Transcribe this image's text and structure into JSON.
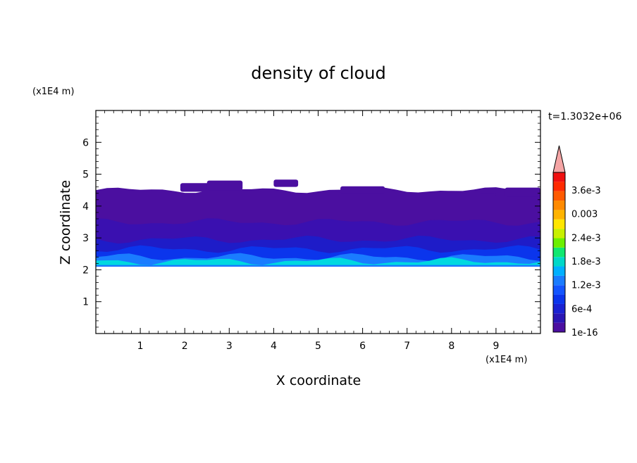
{
  "chart_data": {
    "type": "heatmap",
    "title": "density of cloud",
    "xlabel": "X coordinate",
    "ylabel": "Z coordinate",
    "x_unit": "(x1E4 m)",
    "y_unit": "(x1E4 m)",
    "time_label": "t=1.3032e+06",
    "xlim": [
      0,
      10
    ],
    "ylim": [
      0,
      7
    ],
    "x_ticks": [
      "1",
      "2",
      "3",
      "4",
      "5",
      "6",
      "7",
      "8",
      "9"
    ],
    "y_ticks": [
      "1",
      "2",
      "3",
      "4",
      "5",
      "6"
    ],
    "colorbar": {
      "labels": [
        "3.6e-3",
        "0.003",
        "2.4e-3",
        "1.8e-3",
        "1.2e-3",
        "6e-4",
        "1e-16"
      ],
      "colors": [
        "#4b0fa0",
        "#2a16b4",
        "#1a22d2",
        "#0b35ec",
        "#1355ff",
        "#1a7cff",
        "#00b0ff",
        "#00d8c8",
        "#10e870",
        "#6cf000",
        "#c8f000",
        "#ffe600",
        "#ffb400",
        "#ff8a00",
        "#ff5a00",
        "#ff2a00",
        "#f01010"
      ],
      "extend_color": "#f5a5a5"
    },
    "layers": [
      {
        "color": "#4b0fa0",
        "z_top": 4.5,
        "z_bottom": 2.1
      },
      {
        "color": "#3a10b0",
        "z_top": 3.5,
        "z_bottom": 2.1
      },
      {
        "color": "#1e1cc8",
        "z_top": 2.95,
        "z_bottom": 2.1
      },
      {
        "color": "#0b35ec",
        "z_top": 2.65,
        "z_bottom": 2.1
      },
      {
        "color": "#1a7cff",
        "z_top": 2.4,
        "z_bottom": 2.1
      },
      {
        "color": "#00d8e0",
        "z_top": 2.27,
        "z_bottom": 2.15
      }
    ],
    "cloud_patches": [
      {
        "x0": 1.9,
        "x1": 2.9,
        "z0": 4.45,
        "z1": 4.72
      },
      {
        "x0": 2.5,
        "x1": 3.3,
        "z0": 4.5,
        "z1": 4.8
      },
      {
        "x0": 4.0,
        "x1": 4.55,
        "z0": 4.6,
        "z1": 4.83
      },
      {
        "x0": 5.5,
        "x1": 6.5,
        "z0": 4.4,
        "z1": 4.62
      },
      {
        "x0": 8.6,
        "x1": 9.0,
        "z0": 4.25,
        "z1": 4.4
      },
      {
        "x0": 9.2,
        "x1": 10.0,
        "z0": 4.3,
        "z1": 4.58
      }
    ]
  }
}
